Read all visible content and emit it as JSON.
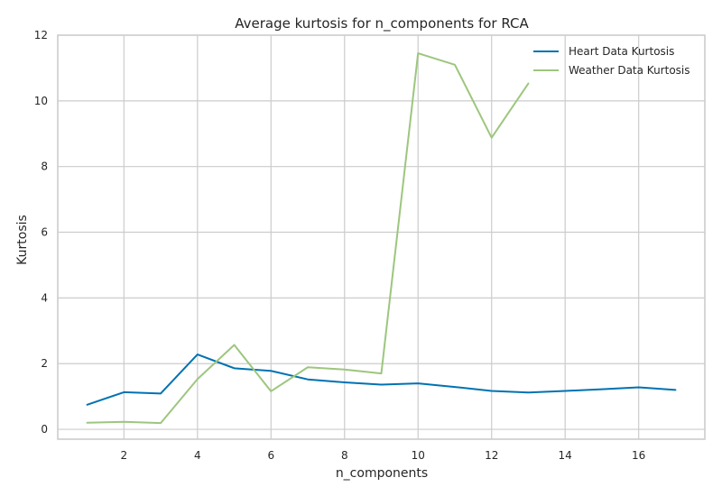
{
  "chart_data": {
    "type": "line",
    "title": "Average kurtosis for n_components for RCA",
    "xlabel": "n_components",
    "ylabel": "Kurtosis",
    "xlim": [
      0.2,
      17.8
    ],
    "ylim": [
      -0.3,
      12.0
    ],
    "xticks": [
      2,
      4,
      6,
      8,
      10,
      12,
      14,
      16
    ],
    "yticks": [
      0,
      2,
      4,
      6,
      8,
      10,
      12
    ],
    "grid": true,
    "legend_position": "top-right",
    "series": [
      {
        "name": "Heart Data Kurtosis",
        "color": "#0072b2",
        "x": [
          1,
          2,
          3,
          4,
          5,
          6,
          7,
          8,
          9,
          10,
          11,
          12,
          13,
          14,
          15,
          16,
          17
        ],
        "y": [
          0.75,
          1.13,
          1.09,
          2.28,
          1.86,
          1.78,
          1.52,
          1.43,
          1.36,
          1.4,
          1.29,
          1.17,
          1.12,
          1.17,
          1.22,
          1.28,
          1.2
        ]
      },
      {
        "name": "Weather Data Kurtosis",
        "color": "#9dc67e",
        "x": [
          1,
          2,
          3,
          4,
          5,
          6,
          7,
          8,
          9,
          10,
          11,
          12,
          13
        ],
        "y": [
          0.2,
          0.23,
          0.19,
          1.53,
          2.57,
          1.16,
          1.89,
          1.82,
          1.7,
          11.45,
          11.1,
          8.88,
          10.53
        ]
      }
    ]
  }
}
